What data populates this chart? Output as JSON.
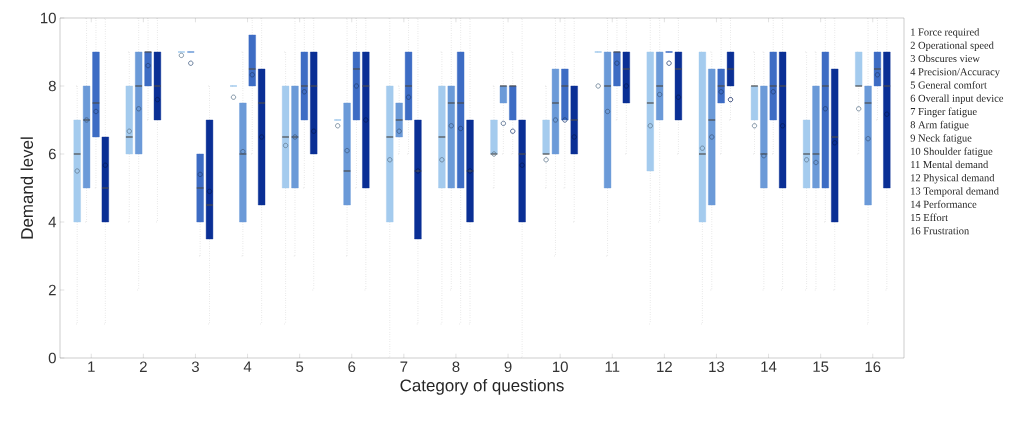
{
  "chart_data": {
    "type": "box",
    "xlabel": "Category of questions",
    "ylabel": "Demand level",
    "categories": [
      "1",
      "2",
      "3",
      "4",
      "5",
      "6",
      "7",
      "8",
      "9",
      "10",
      "11",
      "12",
      "13",
      "14",
      "15",
      "16"
    ],
    "ylim": [
      0,
      10
    ],
    "yticks": [
      0,
      2,
      4,
      6,
      8,
      10
    ],
    "annotations": [
      "1 Force required",
      "2 Operational speed",
      "3 Obscures view",
      "4 Precision/Accuracy",
      "5 General comfort",
      "6 Overall input device",
      "7 Finger fatigue",
      "8 Arm fatigue",
      "9 Neck fatigue",
      "10 Shoulder fatigue",
      "11 Mental demand",
      "12 Physical demand",
      "13 Temporal demand",
      "14 Performance",
      "15 Effort",
      "16 Frustration"
    ],
    "series": [
      {
        "color": "#a4cbee",
        "boxes": [
          {
            "low": 1,
            "q1": 4,
            "median": 6,
            "q3": 7,
            "high": 8,
            "mean": 5.5
          },
          {
            "low": 4,
            "q1": 6,
            "median": 6.5,
            "q3": 8,
            "high": 9,
            "mean": 6.67
          },
          {
            "low": 9,
            "q1": 9,
            "median": 9,
            "q3": 9,
            "high": 9,
            "mean": 8.9
          },
          {
            "low": 8,
            "q1": 8,
            "median": 8,
            "q3": 8,
            "high": 8,
            "mean": 7.67
          },
          {
            "low": 1,
            "q1": 5,
            "median": 6.5,
            "q3": 8,
            "high": 9,
            "mean": 6.25
          },
          {
            "low": 7,
            "q1": 7,
            "median": 7,
            "q3": 7,
            "high": 7,
            "mean": 6.83
          },
          {
            "low": 0,
            "q1": 4,
            "median": 6.5,
            "q3": 8,
            "high": 10,
            "mean": 5.83
          },
          {
            "low": 1,
            "q1": 5,
            "median": 6.5,
            "q3": 8,
            "high": 9,
            "mean": 5.83
          },
          {
            "low": 5,
            "q1": 6,
            "median": 6,
            "q3": 7,
            "high": 8,
            "mean": 6
          },
          {
            "low": 5,
            "q1": 6,
            "median": 6,
            "q3": 7,
            "high": 8,
            "mean": 5.83
          },
          {
            "low": 9,
            "q1": 9,
            "median": 9,
            "q3": 9,
            "high": 9,
            "mean": 8
          },
          {
            "low": 1,
            "q1": 5.5,
            "median": 7.5,
            "q3": 9,
            "high": 10,
            "mean": 6.83
          },
          {
            "low": 1,
            "q1": 4,
            "median": 6,
            "q3": 9,
            "high": 9,
            "mean": 6.17
          },
          {
            "low": 6,
            "q1": 7,
            "median": 8,
            "q3": 8,
            "high": 9,
            "mean": 6.83
          },
          {
            "low": 2,
            "q1": 5,
            "median": 6,
            "q3": 7,
            "high": 9,
            "mean": 5.83
          },
          {
            "low": 6,
            "q1": 8,
            "median": 8,
            "q3": 9,
            "high": 9,
            "mean": 7.33
          }
        ]
      },
      {
        "color": "#6b9ad8",
        "boxes": [
          {
            "low": 4,
            "q1": 5,
            "median": 7,
            "q3": 8,
            "high": 10,
            "mean": 7
          },
          {
            "low": 2,
            "q1": 6,
            "median": 8,
            "q3": 9,
            "high": 10,
            "mean": 7.33
          },
          {
            "low": 9,
            "q1": 9,
            "median": 9,
            "q3": 9,
            "high": 9,
            "mean": 8.67
          },
          {
            "low": 3,
            "q1": 4,
            "median": 6,
            "q3": 7.5,
            "high": 9,
            "mean": 6.07
          },
          {
            "low": 3,
            "q1": 5,
            "median": 6.5,
            "q3": 8,
            "high": 10,
            "mean": 6.5
          },
          {
            "low": 3,
            "q1": 4.5,
            "median": 5.5,
            "q3": 7.5,
            "high": 10,
            "mean": 6.1
          },
          {
            "low": 6,
            "q1": 6.5,
            "median": 7,
            "q3": 7.5,
            "high": 8,
            "mean": 6.67
          },
          {
            "low": 2,
            "q1": 5,
            "median": 7.5,
            "q3": 8,
            "high": 10,
            "mean": 6.83
          },
          {
            "low": 6,
            "q1": 7.5,
            "median": 8,
            "q3": 8,
            "high": 10,
            "mean": 6.9
          },
          {
            "low": 3,
            "q1": 6,
            "median": 7.5,
            "q3": 8.5,
            "high": 10,
            "mean": 7
          },
          {
            "low": 3,
            "q1": 5,
            "median": 8,
            "q3": 9,
            "high": 10,
            "mean": 7.25
          },
          {
            "low": 4,
            "q1": 7,
            "median": 8,
            "q3": 9,
            "high": 10,
            "mean": 7.75
          },
          {
            "low": 2,
            "q1": 4.5,
            "median": 7,
            "q3": 8.5,
            "high": 9,
            "mean": 6.5
          },
          {
            "low": 2,
            "q1": 5,
            "median": 6,
            "q3": 8,
            "high": 9,
            "mean": 5.95
          },
          {
            "low": 2,
            "q1": 5,
            "median": 6,
            "q3": 8,
            "high": 9,
            "mean": 5.75
          },
          {
            "low": 1,
            "q1": 4.5,
            "median": 7.5,
            "q3": 8,
            "high": 10,
            "mean": 6.45
          }
        ]
      },
      {
        "color": "#3d6cc4",
        "boxes": [
          {
            "low": 5,
            "q1": 6.5,
            "median": 7.5,
            "q3": 9,
            "high": 10,
            "mean": 7.25
          },
          {
            "low": 7,
            "q1": 8,
            "median": 9,
            "q3": 9,
            "high": 10,
            "mean": 8.6
          },
          {
            "low": 3,
            "q1": 4,
            "median": 5,
            "q3": 6,
            "high": 6,
            "mean": 5.4
          },
          {
            "low": 6,
            "q1": 8,
            "median": 8.5,
            "q3": 9.5,
            "high": 10,
            "mean": 8.33
          },
          {
            "low": 5,
            "q1": 7,
            "median": 8,
            "q3": 9,
            "high": 10,
            "mean": 7.83
          },
          {
            "low": 5,
            "q1": 7,
            "median": 8.5,
            "q3": 9,
            "high": 10,
            "mean": 8
          },
          {
            "low": 6,
            "q1": 7,
            "median": 8,
            "q3": 9,
            "high": 10,
            "mean": 7.67
          },
          {
            "low": 1,
            "q1": 5,
            "median": 7.5,
            "q3": 9,
            "high": 10,
            "mean": 6.75
          },
          {
            "low": 6,
            "q1": 7,
            "median": 8,
            "q3": 8,
            "high": 9,
            "mean": 6.67
          },
          {
            "low": 5,
            "q1": 7,
            "median": 8,
            "q3": 8.5,
            "high": 10,
            "mean": 7
          },
          {
            "low": 7,
            "q1": 8,
            "median": 9,
            "q3": 9,
            "high": 10,
            "mean": 8.67
          },
          {
            "low": 9,
            "q1": 9,
            "median": 9,
            "q3": 9,
            "high": 9,
            "mean": 8.67
          },
          {
            "low": 6,
            "q1": 7.5,
            "median": 8,
            "q3": 8.5,
            "high": 10,
            "mean": 7.83
          },
          {
            "low": 6,
            "q1": 7,
            "median": 8,
            "q3": 9,
            "high": 10,
            "mean": 7.83
          },
          {
            "low": 4,
            "q1": 5,
            "median": 8,
            "q3": 9,
            "high": 10,
            "mean": 7.33
          },
          {
            "low": 7,
            "q1": 8,
            "median": 8.5,
            "q3": 9,
            "high": 10,
            "mean": 8.33
          }
        ]
      },
      {
        "color": "#0a2f95",
        "boxes": [
          {
            "low": 1,
            "q1": 4,
            "median": 5,
            "q3": 6.5,
            "high": 10,
            "mean": 5.67
          },
          {
            "low": 4,
            "q1": 7,
            "median": 8,
            "q3": 9,
            "high": 10,
            "mean": 7.6
          },
          {
            "low": 1,
            "q1": 3.5,
            "median": 4.5,
            "q3": 7,
            "high": 8,
            "mean": 4.9
          },
          {
            "low": 1,
            "q1": 4.5,
            "median": 7.5,
            "q3": 8.5,
            "high": 10,
            "mean": 6.5
          },
          {
            "low": 2,
            "q1": 6,
            "median": 8,
            "q3": 9,
            "high": 10,
            "mean": 6.67
          },
          {
            "low": 2,
            "q1": 5,
            "median": 8,
            "q3": 9,
            "high": 10,
            "mean": 7
          },
          {
            "low": 1,
            "q1": 3.5,
            "median": 5.5,
            "q3": 7,
            "high": 10,
            "mean": 5.5
          },
          {
            "low": 1,
            "q1": 4,
            "median": 5.5,
            "q3": 7,
            "high": 10,
            "mean": 5.5
          },
          {
            "low": 0,
            "q1": 4,
            "median": 6,
            "q3": 7,
            "high": 10,
            "mean": 5.67
          },
          {
            "low": 4,
            "q1": 6,
            "median": 7,
            "q3": 8,
            "high": 10,
            "mean": 6.5
          },
          {
            "low": 6,
            "q1": 7.5,
            "median": 8.5,
            "q3": 9,
            "high": 10,
            "mean": 8
          },
          {
            "low": 6,
            "q1": 7,
            "median": 8.5,
            "q3": 9,
            "high": 10,
            "mean": 7.67
          },
          {
            "low": 7,
            "q1": 8,
            "median": 8.5,
            "q3": 9,
            "high": 10,
            "mean": 7.6
          },
          {
            "low": 2,
            "q1": 5,
            "median": 8,
            "q3": 9,
            "high": 10,
            "mean": 6.83
          },
          {
            "low": 2,
            "q1": 4,
            "median": 6.5,
            "q3": 8.5,
            "high": 10,
            "mean": 6.33
          },
          {
            "low": 2,
            "q1": 5,
            "median": 8,
            "q3": 9,
            "high": 10,
            "mean": 7.17
          }
        ]
      }
    ]
  }
}
